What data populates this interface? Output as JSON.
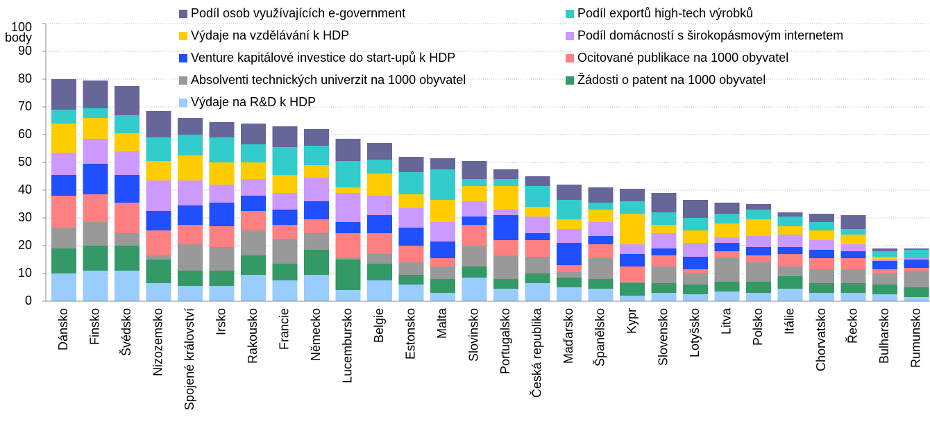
{
  "chart_data": {
    "type": "stacked_bar",
    "y_label": "body",
    "categories": [
      "Dánsko",
      "Finsko",
      "Švédsko",
      "Nizozemsko",
      "Spojené království",
      "Irsko",
      "Rakousko",
      "Francie",
      "Německo",
      "Lucembursko",
      "Belgie",
      "Estonsko",
      "Malta",
      "Slovinsko",
      "Portugalsko",
      "Česká republika",
      "Maďarsko",
      "Španělsko",
      "Kypr",
      "Slovensko",
      "Lotyšsko",
      "Litva",
      "Polsko",
      "Itálie",
      "Chorvatsko",
      "Řecko",
      "Bulharsko",
      "Rumunsko"
    ],
    "series": [
      {
        "name": "Výdaje na R&D k HDP",
        "color": "#99ccff",
        "values": [
          10,
          11,
          11,
          6.5,
          5.5,
          5.5,
          9.5,
          7.5,
          9.5,
          4,
          7.5,
          6,
          3,
          8.5,
          4.5,
          6.5,
          5,
          4.5,
          2,
          3,
          2.5,
          3.5,
          3,
          4.5,
          3,
          3,
          2.5,
          1.5
        ]
      },
      {
        "name": "Žádosti o patent na 1000 obyvatel",
        "color": "#339966",
        "values": [
          9,
          9,
          9,
          8.5,
          5.5,
          5.5,
          7,
          6,
          9,
          11,
          6,
          3.5,
          5,
          4,
          3.5,
          3.5,
          3.5,
          3.5,
          4.5,
          3.5,
          3.5,
          3.5,
          4,
          4.5,
          3.5,
          3.5,
          3.5,
          3.5
        ]
      },
      {
        "name": "Absolventi technických univerzit na 1000 obyvatel",
        "color": "#999999",
        "values": [
          7.5,
          8.5,
          4.5,
          1.5,
          9.5,
          8.5,
          9,
          9,
          6,
          0.5,
          3.5,
          4.5,
          4.5,
          7.5,
          8.5,
          6,
          2,
          7.5,
          0.5,
          6,
          4,
          8.5,
          7,
          3.5,
          5,
          5,
          4,
          6
        ]
      },
      {
        "name": "Ocitované publikace na 1000 obyvatel",
        "color": "#ff8080",
        "values": [
          11.5,
          10,
          11,
          9,
          7,
          7.5,
          7,
          5,
          5,
          9,
          7.5,
          6,
          3,
          7.5,
          5.5,
          6,
          2.5,
          5,
          5.5,
          4,
          1.5,
          2.5,
          2.5,
          4.5,
          4,
          4,
          1.5,
          1
        ]
      },
      {
        "name": "Venture kapitálové investice do start-upů k HDP",
        "color": "#1f4fff",
        "values": [
          7.5,
          11,
          10,
          7,
          7,
          8.5,
          5.5,
          5.5,
          6.5,
          4,
          6.5,
          6.5,
          6,
          3,
          9,
          2.5,
          8,
          3,
          4.5,
          2.5,
          4.5,
          3,
          3,
          2.5,
          3,
          2.5,
          3,
          3
        ]
      },
      {
        "name": "Podíl domácností s širokopásmovým internetem",
        "color": "#cc99ff",
        "values": [
          8,
          9,
          8.5,
          11,
          9,
          6.5,
          6,
          6,
          8.5,
          10.5,
          7,
          7,
          7,
          5.5,
          2,
          6,
          5,
          5,
          3.5,
          5.5,
          5,
          2,
          4,
          4.5,
          3.5,
          2.5,
          0.5,
          0.5
        ]
      },
      {
        "name": "Výdaje na vzdělávání k HDP",
        "color": "#ffcc00",
        "values": [
          10.5,
          7.5,
          6.5,
          7,
          9,
          8,
          6,
          6.5,
          4.5,
          2,
          8,
          5,
          8,
          5.5,
          8.5,
          3.5,
          3.5,
          4.5,
          11,
          3,
          4.5,
          5,
          6,
          3,
          3.5,
          3.5,
          1,
          0
        ]
      },
      {
        "name": "Podíl exportů high-tech výrobků",
        "color": "#33cccc",
        "values": [
          5,
          3.5,
          6.5,
          8.5,
          7.5,
          9,
          6.5,
          10,
          7,
          9.5,
          5,
          8,
          11,
          2.5,
          2.5,
          7.5,
          7,
          2.5,
          4.5,
          4.5,
          4.5,
          3.5,
          3.5,
          3.5,
          3,
          2,
          2,
          3
        ]
      },
      {
        "name": "Podíl osob využívajících e-government",
        "color": "#666699",
        "values": [
          11,
          10,
          10.5,
          9.5,
          6,
          5.5,
          7.5,
          7.5,
          6,
          8,
          6,
          5.5,
          4,
          6.5,
          3.5,
          3.5,
          5.5,
          5.5,
          4.5,
          7,
          6.5,
          4,
          2,
          1.5,
          3,
          5,
          1,
          0.5
        ]
      }
    ],
    "ylim": [
      0,
      100
    ],
    "yticks": [
      0,
      10,
      20,
      30,
      40,
      50,
      60,
      70,
      80,
      90,
      100
    ],
    "grid": true
  }
}
